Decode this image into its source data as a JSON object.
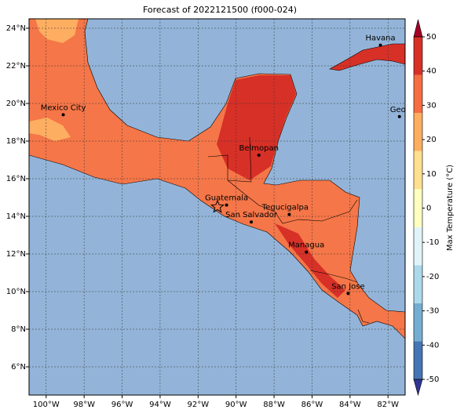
{
  "chart_data": {
    "type": "map",
    "title": "Forecast of 2022121500 (f000-024)",
    "xlim": [
      -100.9,
      -81.1
    ],
    "ylim": [
      4.5,
      24.5
    ],
    "xticks": [
      {
        "value": -100,
        "label": "100°W"
      },
      {
        "value": -98,
        "label": "98°W"
      },
      {
        "value": -96,
        "label": "96°W"
      },
      {
        "value": -94,
        "label": "94°W"
      },
      {
        "value": -92,
        "label": "92°W"
      },
      {
        "value": -90,
        "label": "90°W"
      },
      {
        "value": -88,
        "label": "88°W"
      },
      {
        "value": -86,
        "label": "86°W"
      },
      {
        "value": -84,
        "label": "84°W"
      },
      {
        "value": -82,
        "label": "82°W"
      }
    ],
    "yticks": [
      {
        "value": 6,
        "label": "6°N"
      },
      {
        "value": 8,
        "label": "8°N"
      },
      {
        "value": 10,
        "label": "10°N"
      },
      {
        "value": 12,
        "label": "12°N"
      },
      {
        "value": 14,
        "label": "14°N"
      },
      {
        "value": 16,
        "label": "16°N"
      },
      {
        "value": 18,
        "label": "18°N"
      },
      {
        "value": 20,
        "label": "20°N"
      },
      {
        "value": 22,
        "label": "22°N"
      },
      {
        "value": 24,
        "label": "24°N"
      }
    ],
    "grid": true,
    "cities": [
      "Havana",
      "Mexico City",
      "George Town",
      "Belmopan",
      "Guatemala",
      "Tegucigalpa",
      "San Salvador",
      "Managua",
      "San Jose"
    ],
    "colorbar": {
      "label": "Max Temperature (°C)",
      "lim": [
        -50,
        50
      ],
      "ticks": [
        -50,
        -40,
        -30,
        -20,
        -10,
        0,
        10,
        20,
        30,
        40,
        50
      ],
      "colors": [
        "#313695",
        "#4575b4",
        "#74add1",
        "#abd9e9",
        "#e0f3f8",
        "#ffffbf",
        "#fee090",
        "#fdae61",
        "#f46d43",
        "#d73027",
        "#a50026"
      ]
    }
  }
}
